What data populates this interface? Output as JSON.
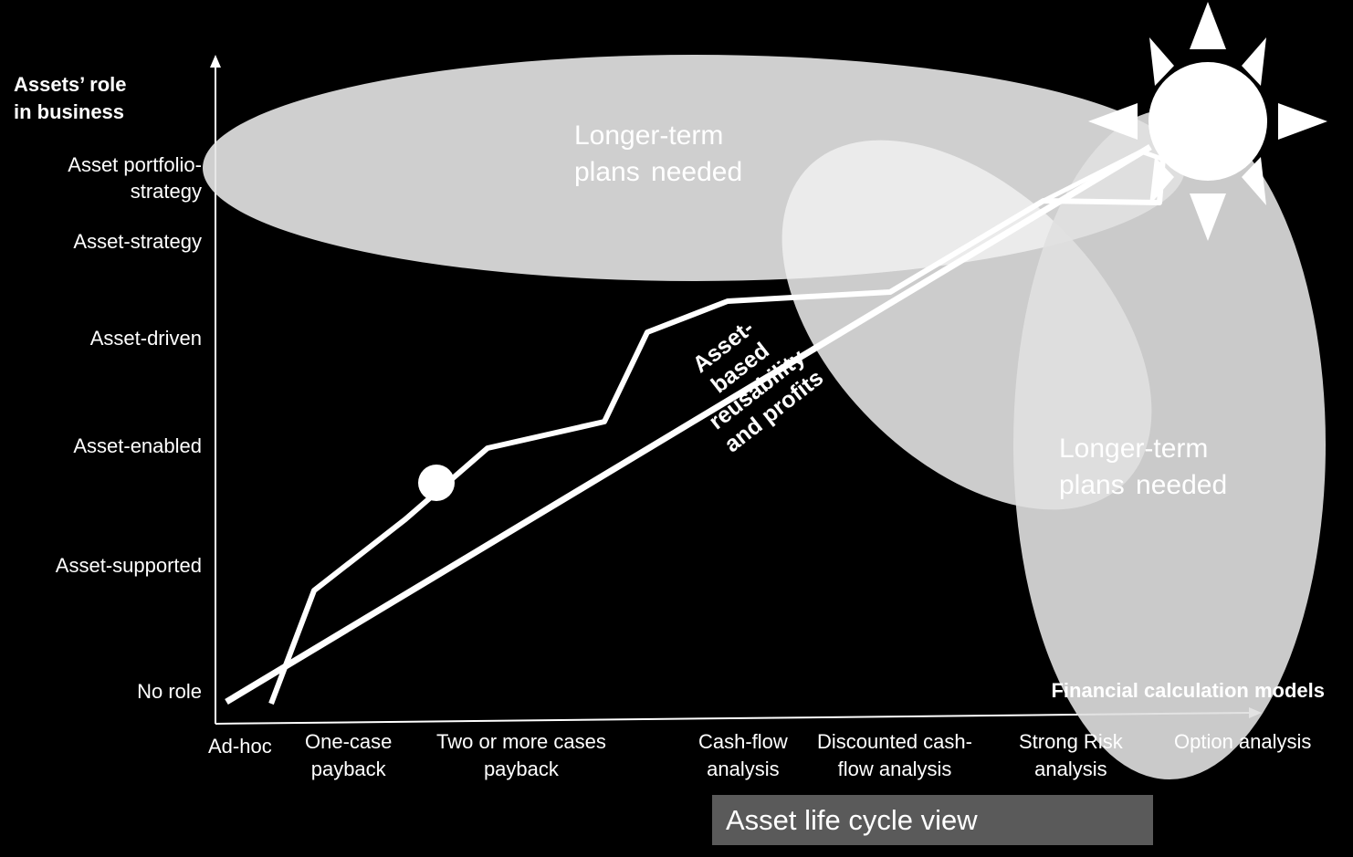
{
  "y_axis": {
    "title": "Assets’ role\nin business",
    "levels": [
      "No role",
      "Asset-supported",
      "Asset-enabled",
      "Asset-driven",
      "Asset-strategy",
      "Asset portfolio-\nstrategy"
    ]
  },
  "x_axis": {
    "title": "Financial calculation models",
    "levels": [
      "Ad-hoc",
      "One-case\npayback",
      "Two or more cases\npayback",
      "Cash-flow\nanalysis",
      "Discounted cash-\nflow analysis",
      "Strong Risk\nanalysis",
      "Option analysis"
    ]
  },
  "bubbles": {
    "top_label": "Longer-term\nplans needed",
    "right_label": "Longer-term\nplans needed"
  },
  "diagonal_label": "Asset-\nbased\nreusability\nand profits",
  "lifecycle_label": "Asset life cycle view",
  "colors": {
    "background": "#000000",
    "line": "#ffffff",
    "bubble_top": "#e6e6e6",
    "bubble_right": "#e0e0e0",
    "lifecycle_box": "#5a5a5a"
  }
}
